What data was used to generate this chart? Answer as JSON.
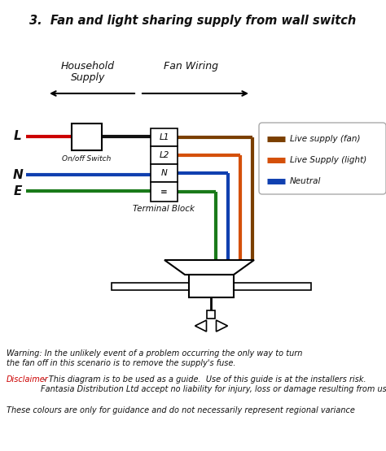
{
  "title": "3.  Fan and light sharing supply from wall switch",
  "bg_color": "#ffffff",
  "colors": {
    "red": "#cc0000",
    "black": "#111111",
    "brown": "#7B3F00",
    "orange": "#D4500A",
    "blue": "#1040B0",
    "green": "#1A7A1A",
    "gray": "#888888"
  },
  "legend_items": [
    {
      "label": "Live supply (fan)",
      "color": "#7B3F00"
    },
    {
      "label": "Live Supply (light)",
      "color": "#D4500A"
    },
    {
      "label": "Neutral",
      "color": "#1040B0"
    }
  ],
  "warning_text": "Warning: In the unlikely event of a problem occurring the only way to turn\nthe fan off in this scenario is to remove the supply's fuse.",
  "disclaimer_label": "Disclaimer",
  "disclaimer_text": " - This diagram is to be used as a guide.  Use of this guide is at the installers risk.\nFantasia Distribution Ltd accept no liability for injury, loss or damage resulting from use of this guide",
  "footer_text": "These colours are only for guidance and do not necessarily represent regional variance"
}
